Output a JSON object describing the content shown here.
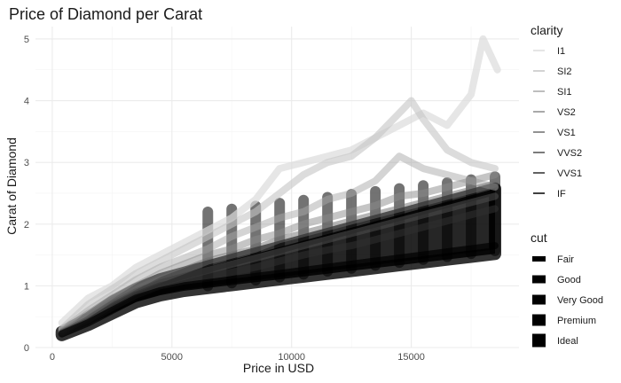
{
  "chart_data": {
    "type": "line",
    "title": "Price of Diamond per Carat",
    "xlabel": "Price in USD",
    "ylabel": "Carat of Diamond",
    "xlim": [
      -700,
      19500
    ],
    "ylim": [
      0,
      5.2
    ],
    "x_ticks": [
      0,
      5000,
      10000,
      15000
    ],
    "x_tick_labels": [
      "0",
      "5000",
      "10000",
      "15000"
    ],
    "y_ticks": [
      0,
      1,
      2,
      3,
      4,
      5
    ],
    "y_tick_labels": [
      "0",
      "1",
      "2",
      "3",
      "4",
      "5"
    ],
    "grid": true,
    "legend_position": "right",
    "legends": [
      {
        "title": "clarity",
        "entries": [
          "I1",
          "SI2",
          "SI1",
          "VS2",
          "VS1",
          "VVS2",
          "VVS1",
          "IF"
        ],
        "colors": [
          "#dcdcdc",
          "#c4c4c4",
          "#a9a9a9",
          "#8c8c8c",
          "#6e6e6e",
          "#4f4f4f",
          "#2e2e2e",
          "#000000"
        ]
      },
      {
        "title": "cut",
        "entries": [
          "Fair",
          "Good",
          "Very Good",
          "Premium",
          "Ideal"
        ],
        "colors": [
          "#000000",
          "#000000",
          "#000000",
          "#000000",
          "#000000"
        ]
      }
    ],
    "series": [
      {
        "name": "I1",
        "color": "#dcdcdc",
        "opacity": 0.7,
        "x": [
          400,
          1500,
          2500,
          3500,
          4500,
          5500,
          6500,
          7500,
          8500,
          9500,
          10500,
          11500,
          12500,
          13500,
          14500,
          15500,
          16500,
          17500,
          18000,
          18600
        ],
        "y": [
          0.4,
          0.8,
          1.0,
          1.3,
          1.5,
          1.7,
          1.9,
          2.1,
          2.4,
          2.9,
          3.0,
          3.1,
          3.2,
          3.4,
          3.6,
          3.8,
          3.6,
          4.1,
          5.0,
          4.5
        ]
      },
      {
        "name": "SI2",
        "color": "#c4c4c4",
        "opacity": 0.6,
        "x": [
          400,
          1500,
          2500,
          3500,
          4500,
          5500,
          6500,
          7500,
          8500,
          9500,
          10500,
          11500,
          12500,
          13500,
          14500,
          15000,
          15500,
          16500,
          17500,
          18500
        ],
        "y": [
          0.3,
          0.7,
          0.95,
          1.2,
          1.4,
          1.6,
          1.8,
          2.0,
          2.2,
          2.5,
          2.8,
          3.0,
          3.1,
          3.4,
          3.8,
          4.0,
          3.7,
          3.2,
          3.0,
          2.9
        ]
      },
      {
        "name": "SI1",
        "color": "#a9a9a9",
        "opacity": 0.5,
        "x": [
          400,
          1500,
          2500,
          3500,
          4500,
          5500,
          6500,
          7500,
          8500,
          9500,
          10500,
          11500,
          12500,
          13500,
          14500,
          15500,
          16500,
          17500,
          18500
        ],
        "y": [
          0.28,
          0.6,
          0.85,
          1.1,
          1.3,
          1.45,
          1.6,
          1.8,
          1.95,
          2.1,
          2.2,
          2.4,
          2.5,
          2.7,
          3.1,
          2.9,
          2.8,
          2.7,
          2.6
        ]
      },
      {
        "name": "VS2",
        "color": "#8c8c8c",
        "opacity": 0.5,
        "x": [
          400,
          1500,
          2500,
          3500,
          4500,
          5500,
          6500,
          7500,
          8500,
          9500,
          10500,
          11500,
          12500,
          13500,
          14500,
          15500,
          16500,
          17500,
          18500
        ],
        "y": [
          0.26,
          0.55,
          0.8,
          1.0,
          1.2,
          1.35,
          1.5,
          1.6,
          1.75,
          1.85,
          2.0,
          2.1,
          2.2,
          2.3,
          2.45,
          2.5,
          2.6,
          2.7,
          2.8
        ]
      },
      {
        "name": "VS1",
        "color": "#6e6e6e",
        "opacity": 0.5,
        "x": [
          400,
          1500,
          2500,
          3500,
          4500,
          5500,
          6500,
          7500,
          8500,
          9500,
          10500,
          11500,
          12500,
          13500,
          14500,
          15500,
          16500,
          17500,
          18500
        ],
        "y": [
          0.25,
          0.5,
          0.75,
          0.95,
          1.1,
          1.25,
          1.4,
          1.5,
          1.6,
          1.75,
          1.85,
          1.95,
          2.05,
          2.15,
          2.25,
          2.35,
          2.45,
          2.55,
          2.65
        ]
      },
      {
        "name": "VVS2",
        "color": "#4f4f4f",
        "opacity": 0.55,
        "x": [
          400,
          1500,
          2500,
          3500,
          4500,
          5500,
          6500,
          7500,
          8500,
          9500,
          10500,
          11500,
          12500,
          13500,
          14500,
          15500,
          16500,
          17500,
          18500
        ],
        "y": [
          0.24,
          0.45,
          0.7,
          0.9,
          1.05,
          1.15,
          1.25,
          1.35,
          1.45,
          1.55,
          1.65,
          1.75,
          1.85,
          1.95,
          2.05,
          2.15,
          2.25,
          2.35,
          2.45
        ]
      },
      {
        "name": "VVS1",
        "color": "#2e2e2e",
        "opacity": 0.6,
        "x": [
          400,
          1500,
          2500,
          3500,
          4500,
          5500,
          6500,
          7500,
          8500,
          9500,
          10500,
          11500,
          12500,
          13500,
          14500,
          15500,
          16500,
          17500,
          18500
        ],
        "y": [
          0.23,
          0.42,
          0.65,
          0.85,
          1.0,
          1.08,
          1.15,
          1.22,
          1.3,
          1.4,
          1.5,
          1.58,
          1.65,
          1.75,
          1.85,
          1.95,
          2.05,
          2.15,
          2.25
        ]
      },
      {
        "name": "IF",
        "color": "#000000",
        "opacity": 0.7,
        "x": [
          400,
          1500,
          2500,
          3500,
          4500,
          5500,
          6500,
          7500,
          8500,
          9500,
          10500,
          11500,
          12500,
          13500,
          14500,
          15500,
          16500,
          17500,
          18500
        ],
        "y": [
          0.22,
          0.4,
          0.6,
          0.8,
          0.92,
          1.0,
          1.05,
          1.1,
          1.15,
          1.2,
          1.25,
          1.3,
          1.35,
          1.4,
          1.45,
          1.5,
          1.55,
          1.6,
          1.65
        ]
      }
    ]
  }
}
